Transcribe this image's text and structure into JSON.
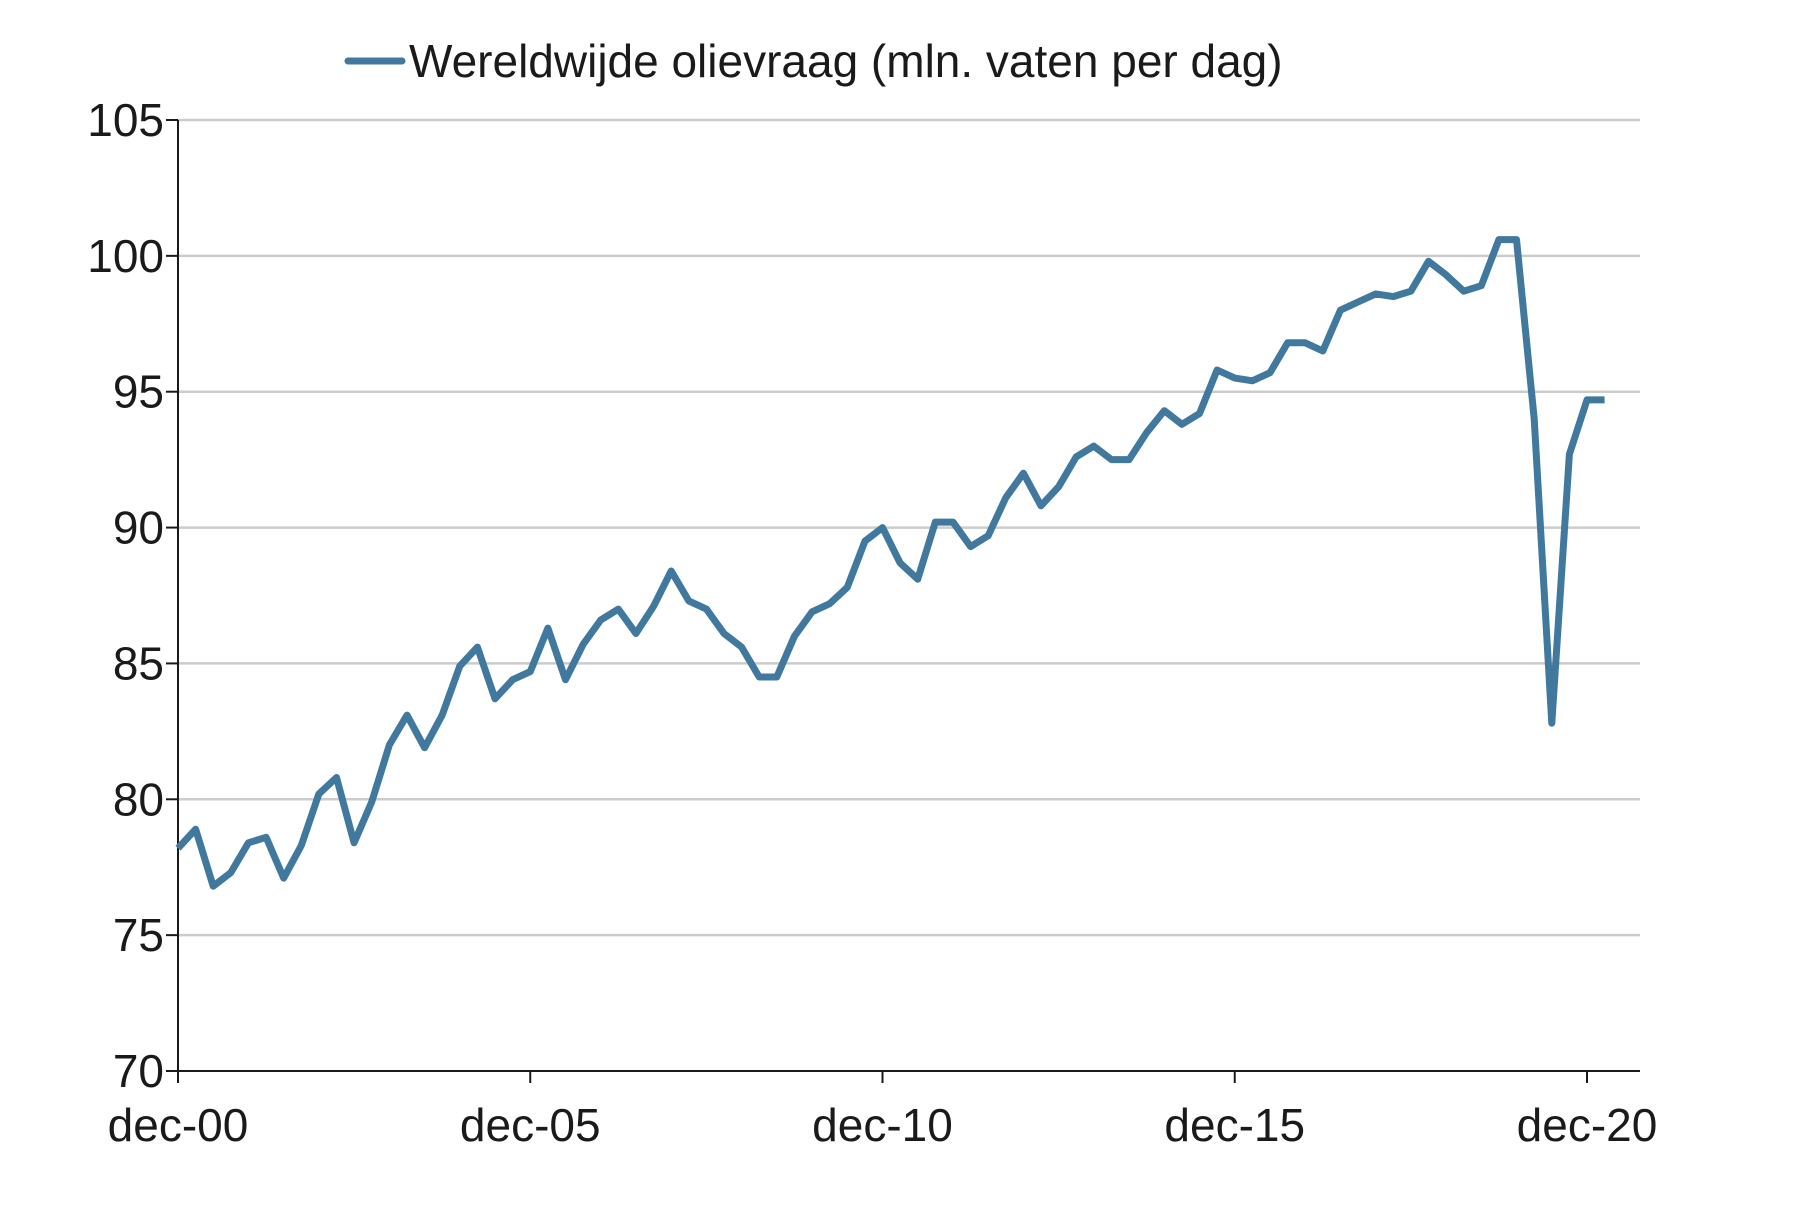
{
  "chart_data": {
    "type": "line",
    "title": "",
    "xlabel": "",
    "ylabel": "",
    "ylim": [
      70,
      105
    ],
    "y_ticks": [
      70,
      75,
      80,
      85,
      90,
      95,
      100,
      105
    ],
    "x_ticks": [
      {
        "label": "dec-00",
        "quarter_index": 0
      },
      {
        "label": "dec-05",
        "quarter_index": 20
      },
      {
        "label": "dec-10",
        "quarter_index": 40
      },
      {
        "label": "dec-15",
        "quarter_index": 60
      },
      {
        "label": "dec-20",
        "quarter_index": 80
      }
    ],
    "x_range_quarters": [
      0,
      81
    ],
    "grid": "horizontal",
    "legend_position": "top-center",
    "series": [
      {
        "name": "Wereldwijde olievraag (mln. vaten per dag)",
        "color": "#41799e",
        "values": [
          78.2,
          78.9,
          76.8,
          77.3,
          78.4,
          78.6,
          77.1,
          78.3,
          80.2,
          80.8,
          78.4,
          79.9,
          82.0,
          83.1,
          81.9,
          83.1,
          84.9,
          85.6,
          83.7,
          84.4,
          84.7,
          86.3,
          84.4,
          85.7,
          86.6,
          87.0,
          86.1,
          87.1,
          88.4,
          87.3,
          87.0,
          86.1,
          85.6,
          84.5,
          84.5,
          86.0,
          86.9,
          87.2,
          87.8,
          89.5,
          90.0,
          88.7,
          88.1,
          90.2,
          90.2,
          89.3,
          89.7,
          91.1,
          92.0,
          90.8,
          91.5,
          92.6,
          93.0,
          92.5,
          92.5,
          93.5,
          94.3,
          93.8,
          94.2,
          95.8,
          95.5,
          95.4,
          95.7,
          96.8,
          96.8,
          96.5,
          98.0,
          98.3,
          98.6,
          98.5,
          98.7,
          99.8,
          99.3,
          98.7,
          98.9,
          100.6,
          100.6,
          94.0,
          82.8,
          92.7,
          94.7,
          94.7
        ]
      }
    ]
  }
}
